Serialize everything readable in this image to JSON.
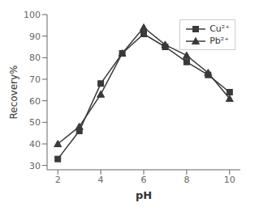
{
  "chart_data": {
    "type": "line",
    "xlabel": "pH",
    "ylabel": "Recovery%",
    "x": [
      2,
      3,
      4,
      5,
      6,
      7,
      8,
      9,
      10
    ],
    "series": [
      {
        "name": "Cu²⁺",
        "color": "#3a3a3a",
        "marker": "square",
        "line_style": "solid",
        "values": [
          33,
          46,
          68,
          82,
          91,
          85,
          78,
          72,
          64
        ]
      },
      {
        "name": "Pb²⁺",
        "color": "#3a3a3a",
        "marker": "triangle",
        "line_style": "solid",
        "values": [
          40,
          48,
          63,
          82,
          94,
          86,
          81,
          73,
          61
        ]
      }
    ],
    "xlim": [
      1.5,
      10.5
    ],
    "xticks": [
      2,
      4,
      6,
      8,
      10
    ],
    "ylim": [
      28,
      100
    ],
    "yticks": [
      30,
      40,
      50,
      60,
      70,
      80,
      90,
      100
    ],
    "grid": false,
    "legend": "upper right"
  }
}
